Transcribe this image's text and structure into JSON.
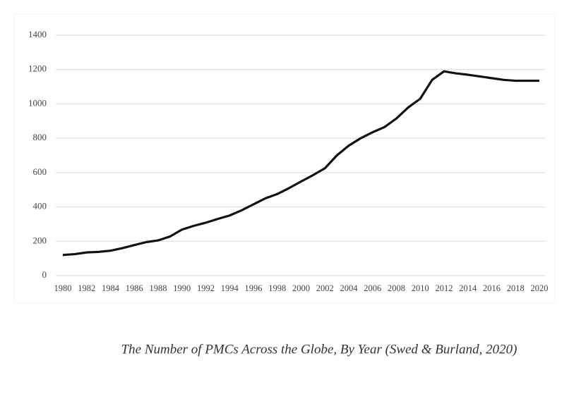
{
  "chart_data": {
    "type": "line",
    "caption": "The Number of PMCs Across the Globe, By Year (Swed & Burland, 2020)",
    "x": [
      1980,
      1981,
      1982,
      1983,
      1984,
      1985,
      1986,
      1987,
      1988,
      1989,
      1990,
      1991,
      1992,
      1993,
      1994,
      1995,
      1996,
      1997,
      1998,
      1999,
      2000,
      2001,
      2002,
      2003,
      2004,
      2005,
      2006,
      2007,
      2008,
      2009,
      2010,
      2011,
      2012,
      2013,
      2014,
      2015,
      2016,
      2017,
      2018,
      2019,
      2020
    ],
    "series": [
      {
        "color": "#111111",
        "values": [
          120,
          125,
          135,
          138,
          145,
          160,
          178,
          195,
          205,
          228,
          268,
          290,
          308,
          330,
          350,
          380,
          415,
          450,
          475,
          510,
          548,
          585,
          625,
          700,
          757,
          800,
          835,
          865,
          915,
          980,
          1030,
          1140,
          1190,
          1178,
          1170,
          1160,
          1150,
          1140,
          1135,
          1135,
          1135
        ]
      }
    ],
    "xlim": [
      1980,
      2020
    ],
    "xticks": [
      1980,
      1982,
      1984,
      1986,
      1988,
      1990,
      1992,
      1994,
      1996,
      1998,
      2000,
      2002,
      2004,
      2006,
      2008,
      2010,
      2012,
      2014,
      2016,
      2018,
      2020
    ],
    "ylim": [
      0,
      1400
    ],
    "yticks": [
      0,
      200,
      400,
      600,
      800,
      1000,
      1200,
      1400
    ],
    "grid": true
  }
}
